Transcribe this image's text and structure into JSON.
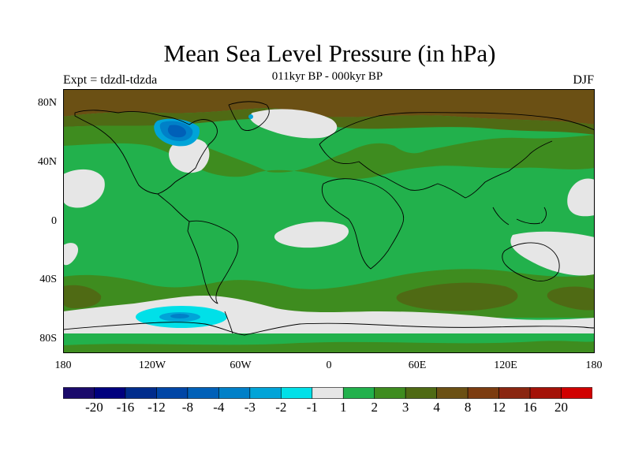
{
  "title": "Mean Sea Level Pressure (in hPa)",
  "subtitle": "011kyr BP - 000kyr BP",
  "experiment": "Expt = tdzdl-tdzda",
  "season": "DJF",
  "lat_labels": [
    "80N",
    "40N",
    "0",
    "40S",
    "80S"
  ],
  "lon_labels": [
    "180",
    "120W",
    "60W",
    "0",
    "60E",
    "120E",
    "180"
  ],
  "colorbar": {
    "colors": [
      "#1a0a6b",
      "#00007e",
      "#002c8c",
      "#0046a6",
      "#0060b8",
      "#0080c8",
      "#00a4d8",
      "#00e0e8",
      "#e6e6e6",
      "#22b14c",
      "#3e8c1f",
      "#4f6a14",
      "#6b5014",
      "#7c3c10",
      "#8a2610",
      "#a41208",
      "#d00000"
    ],
    "labels": [
      "-20",
      "-16",
      "-12",
      "-8",
      "-4",
      "-3",
      "-2",
      "-1",
      "1",
      "2",
      "3",
      "4",
      "8",
      "12",
      "16",
      "20"
    ]
  },
  "field_colors": {
    "ocean_base": "#22b14c",
    "near_zero": "#e6e6e6",
    "plus3": "#3e8c1f",
    "plus4": "#4f6a14",
    "plus8": "#6b5014",
    "minus1": "#00e0e8",
    "minus2": "#00a4d8",
    "minus3": "#0080c8",
    "minus4": "#0060b8",
    "coast": "#000000"
  }
}
